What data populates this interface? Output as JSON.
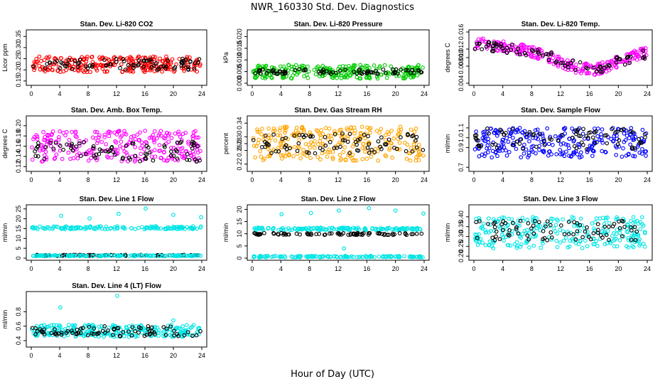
{
  "figure": {
    "title": "NWR_160330  Std. Dev. Diagnostics",
    "xlabel": "Hour of Day (UTC)"
  },
  "chart_data": [
    {
      "type": "scatter",
      "title": "Stan. Dev. Li-820 CO2",
      "ylabel": "Licor ppm",
      "xlim": [
        0,
        24
      ],
      "ylim": [
        0.14,
        0.37
      ],
      "xticks": [
        0,
        4,
        8,
        12,
        16,
        20,
        24
      ],
      "yticks": [
        {
          "v": 0.15,
          "label": "0.15"
        },
        {
          "v": 0.2,
          "label": "0.20"
        },
        {
          "v": 0.25,
          "label": "0.25"
        },
        {
          "v": 0.3,
          "label": "0.30"
        },
        {
          "v": 0.35,
          "label": "0.35"
        }
      ],
      "series": [
        {
          "color": "#ff0000",
          "band": [
            0.19,
            0.26
          ],
          "values_summary": "mostly 0.19-0.26, outliers to 0.35"
        },
        {
          "color": "#000000",
          "band": [
            0.2,
            0.25
          ]
        }
      ]
    },
    {
      "type": "scatter",
      "title": "Stan. Dev. Li-820 Pressure",
      "ylabel": "kPa",
      "xlim": [
        0,
        24
      ],
      "ylim": [
        0,
        0.022
      ],
      "xticks": [
        0,
        4,
        8,
        12,
        16,
        20,
        24
      ],
      "yticks": [
        {
          "v": 0,
          "label": "0.000"
        },
        {
          "v": 0.005,
          "label": "0.005"
        },
        {
          "v": 0.01,
          "label": "0.010"
        },
        {
          "v": 0.015,
          "label": "0.015"
        },
        {
          "v": 0.02,
          "label": "0.020"
        }
      ],
      "series": [
        {
          "color": "#00cc00",
          "band": [
            0.002,
            0.008
          ]
        },
        {
          "color": "#000000",
          "band": [
            0.004,
            0.006
          ]
        }
      ]
    },
    {
      "type": "scatter",
      "title": "Stan. Dev. Li-820 Temp.",
      "ylabel": "degrees C",
      "xlim": [
        0,
        24
      ],
      "ylim": [
        0.004,
        0.016
      ],
      "xticks": [
        0,
        4,
        8,
        12,
        16,
        20,
        24
      ],
      "yticks": [
        {
          "v": 0.004,
          "label": "0.004"
        },
        {
          "v": 0.008,
          "label": "0.008"
        },
        {
          "v": 0.01,
          "label": "0.010"
        },
        {
          "v": 0.012,
          "label": "0.012"
        },
        {
          "v": 0.016,
          "label": "0.016"
        }
      ],
      "series": [
        {
          "color": "#ff00ff",
          "trend": [
            [
              0,
              0.0135
            ],
            [
              8,
              0.0115
            ],
            [
              14,
              0.0078
            ],
            [
              17,
              0.0072
            ],
            [
              24,
              0.0115
            ]
          ]
        },
        {
          "color": "#000000",
          "trend": [
            [
              0,
              0.013
            ],
            [
              8,
              0.0115
            ],
            [
              14,
              0.008
            ],
            [
              17,
              0.0075
            ],
            [
              24,
              0.011
            ]
          ]
        }
      ]
    },
    {
      "type": "scatter",
      "title": "Stan. Dev. Amb. Box Temp.",
      "ylabel": "degrees C",
      "xlim": [
        0,
        24
      ],
      "ylim": [
        0.115,
        0.215
      ],
      "xticks": [
        0,
        4,
        8,
        12,
        16,
        20,
        24
      ],
      "yticks": [
        {
          "v": 0.12,
          "label": "0.12"
        },
        {
          "v": 0.14,
          "label": "0.14"
        },
        {
          "v": 0.16,
          "label": "0.16"
        },
        {
          "v": 0.18,
          "label": "0.18"
        },
        {
          "v": 0.2,
          "label": "0.20"
        }
      ],
      "series": [
        {
          "color": "#ff00ff",
          "band": [
            0.13,
            0.19
          ]
        },
        {
          "color": "#000000",
          "band": [
            0.13,
            0.17
          ]
        }
      ]
    },
    {
      "type": "scatter",
      "title": "Stan. Dev. Gas Stream RH",
      "ylabel": "percent",
      "xlim": [
        0,
        24
      ],
      "ylim": [
        0.205,
        0.355
      ],
      "xticks": [
        0,
        4,
        8,
        12,
        16,
        20,
        24
      ],
      "yticks": [
        {
          "v": 0.22,
          "label": "0.22"
        },
        {
          "v": 0.26,
          "label": "0.26"
        },
        {
          "v": 0.28,
          "label": "0.28"
        },
        {
          "v": 0.3,
          "label": "0.30"
        },
        {
          "v": 0.34,
          "label": "0.34"
        }
      ],
      "series": [
        {
          "color": "#ffa500",
          "band": [
            0.23,
            0.33
          ]
        },
        {
          "color": "#000000",
          "band": [
            0.25,
            0.31
          ]
        }
      ]
    },
    {
      "type": "scatter",
      "title": "Stan. Dev. Sample Flow",
      "ylabel": "ml/min",
      "xlim": [
        0,
        24
      ],
      "ylim": [
        0.68,
        1.2
      ],
      "xticks": [
        0,
        4,
        8,
        12,
        16,
        20,
        24
      ],
      "yticks": [
        {
          "v": 0.7,
          "label": "0.7"
        },
        {
          "v": 0.9,
          "label": "0.9"
        },
        {
          "v": 1.0,
          "label": "1.0"
        },
        {
          "v": 1.1,
          "label": "1.1"
        }
      ],
      "series": [
        {
          "color": "#0000ff",
          "band": [
            0.8,
            1.1
          ]
        },
        {
          "color": "#000000",
          "band": [
            0.88,
            1.1
          ]
        }
      ]
    },
    {
      "type": "scatter",
      "title": "Stan. Dev. Line 1 Flow",
      "ylabel": "ml/min",
      "xlim": [
        0,
        24
      ],
      "ylim": [
        0,
        26
      ],
      "xticks": [
        0,
        4,
        8,
        12,
        16,
        20,
        24
      ],
      "yticks": [
        {
          "v": 0,
          "label": "0"
        },
        {
          "v": 5,
          "label": "5"
        },
        {
          "v": 10,
          "label": "10"
        },
        {
          "v": 15,
          "label": "15"
        },
        {
          "v": 20,
          "label": "20"
        },
        {
          "v": 25,
          "label": "25"
        }
      ],
      "series": [
        {
          "color": "#00e5e5",
          "band": [
            14.7,
            16.2
          ],
          "outliers": [
            [
              4.2,
              21.5
            ],
            [
              8.2,
              20.2
            ],
            [
              12.3,
              22.5
            ],
            [
              16.1,
              25.2
            ],
            [
              20.0,
              22.0
            ],
            [
              23.9,
              20.8
            ]
          ]
        },
        {
          "color": "#000000",
          "band": [
            1.1,
            1.7
          ]
        },
        {
          "color": "#00e5e5",
          "band": [
            1.0,
            1.5
          ]
        }
      ]
    },
    {
      "type": "scatter",
      "title": "Stan. Dev. Line 2 Flow",
      "ylabel": "ml/min",
      "xlim": [
        0,
        24
      ],
      "ylim": [
        0,
        21
      ],
      "xticks": [
        0,
        4,
        8,
        12,
        16,
        20,
        24
      ],
      "yticks": [
        {
          "v": 0,
          "label": "0"
        },
        {
          "v": 5,
          "label": "5"
        },
        {
          "v": 10,
          "label": "10"
        },
        {
          "v": 15,
          "label": "15"
        },
        {
          "v": 20,
          "label": "20"
        }
      ],
      "series": [
        {
          "color": "#00e5e5",
          "band": [
            11.5,
            12.5
          ],
          "outliers": [
            [
              4.1,
              18.0
            ],
            [
              8.2,
              18.5
            ],
            [
              12.1,
              19.5
            ],
            [
              16.3,
              20.5
            ],
            [
              20.0,
              19.5
            ],
            [
              23.9,
              18.3
            ],
            [
              12.8,
              4.0
            ]
          ]
        },
        {
          "color": "#000000",
          "band": [
            9.5,
            10.3
          ]
        },
        {
          "color": "#00e5e5",
          "band": [
            0.3,
            0.9
          ]
        }
      ]
    },
    {
      "type": "scatter",
      "title": "Stan. Dev. Line 3 Flow",
      "ylabel": "ml/min",
      "xlim": [
        0,
        24
      ],
      "ylim": [
        0.19,
        0.45
      ],
      "xticks": [
        0,
        4,
        8,
        12,
        16,
        20,
        24
      ],
      "yticks": [
        {
          "v": 0.2,
          "label": "0.20"
        },
        {
          "v": 0.25,
          "label": "0.25"
        },
        {
          "v": 0.3,
          "label": "0.30"
        },
        {
          "v": 0.35,
          "label": "0.35"
        },
        {
          "v": 0.4,
          "label": "0.40"
        }
      ],
      "series": [
        {
          "color": "#00e5e5",
          "band": [
            0.24,
            0.4
          ]
        },
        {
          "color": "#000000",
          "band": [
            0.28,
            0.38
          ]
        }
      ]
    },
    {
      "type": "scatter",
      "title": "Stan. Dev. Line 4 (LT) Flow",
      "ylabel": "ml/min",
      "xlim": [
        0,
        24
      ],
      "ylim": [
        0.34,
        1.05
      ],
      "xticks": [
        0,
        4,
        8,
        12,
        16,
        20,
        24
      ],
      "yticks": [
        {
          "v": 0.4,
          "label": "0.4"
        },
        {
          "v": 0.6,
          "label": "0.6"
        },
        {
          "v": 0.8,
          "label": "0.8"
        }
      ],
      "series": [
        {
          "color": "#00e5e5",
          "band": [
            0.45,
            0.62
          ],
          "outliers": [
            [
              4.1,
              0.86
            ],
            [
              12.1,
              1.02
            ],
            [
              20.0,
              0.68
            ]
          ]
        },
        {
          "color": "#000000",
          "band": [
            0.46,
            0.6
          ]
        }
      ]
    }
  ]
}
